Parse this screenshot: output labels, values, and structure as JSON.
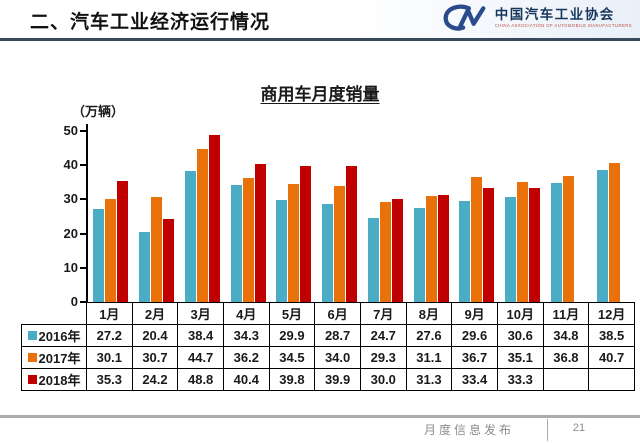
{
  "header": {
    "title": "二、汽车工业经济运行情况",
    "logo": {
      "org_cn": "中国汽车工业协会",
      "org_en": "CHINA ASSOCIATION OF AUTOMOBILE MANUFACTURERS",
      "mark_color": "#2b4c8c"
    }
  },
  "chart_data": {
    "type": "bar",
    "title": "商用车月度销量",
    "unit_label": "（万辆）",
    "categories": [
      "1月",
      "2月",
      "3月",
      "4月",
      "5月",
      "6月",
      "7月",
      "8月",
      "9月",
      "10月",
      "11月",
      "12月"
    ],
    "series": [
      {
        "name": "2016年",
        "color": "#4bacc6",
        "values": [
          27.2,
          20.4,
          38.4,
          34.3,
          29.9,
          28.7,
          24.7,
          27.6,
          29.6,
          30.6,
          34.8,
          38.5
        ]
      },
      {
        "name": "2017年",
        "color": "#e8710a",
        "values": [
          30.1,
          30.7,
          44.7,
          36.2,
          34.5,
          34.0,
          29.3,
          31.1,
          36.7,
          35.1,
          36.8,
          40.7
        ]
      },
      {
        "name": "2018年",
        "color": "#c00000",
        "values": [
          35.3,
          24.2,
          48.8,
          40.4,
          39.8,
          39.9,
          30.0,
          31.3,
          33.4,
          33.3,
          null,
          null
        ]
      }
    ],
    "ylim": [
      0,
      50
    ],
    "yticks": [
      0,
      10,
      20,
      30,
      40,
      50
    ],
    "grid": false,
    "legend_position": "table-left"
  },
  "footer": {
    "label": "月度信息发布",
    "page": "21"
  }
}
